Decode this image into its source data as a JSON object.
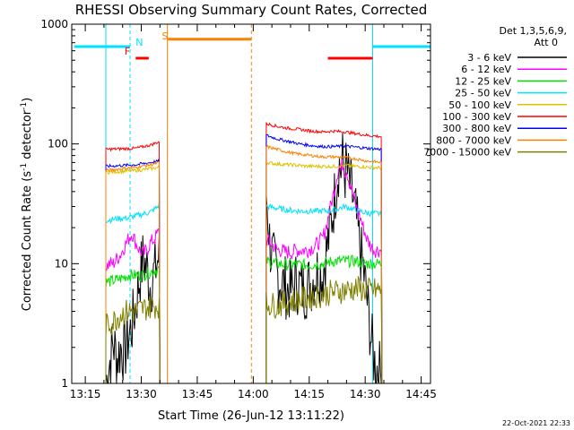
{
  "chart_data": {
    "type": "line",
    "title": "RHESSI Observing Summary Count Rates, Corrected",
    "xlabel": "Start Time (26-Jun-12 13:11:22)",
    "ylabel_main": "Corrected Count Rate (s",
    "ylabel_sup1": "-1",
    "ylabel_mid": " detector",
    "ylabel_sup2": "-1",
    "ylabel_end": ")",
    "yscale": "log",
    "ylim": [
      1,
      1000
    ],
    "xlim_minutes": [
      11.37,
      107.5
    ],
    "x_ticks": [
      {
        "m": 15,
        "label": "13:15"
      },
      {
        "m": 30,
        "label": "13:30"
      },
      {
        "m": 45,
        "label": "13:45"
      },
      {
        "m": 60,
        "label": "14:00"
      },
      {
        "m": 75,
        "label": "14:15"
      },
      {
        "m": 90,
        "label": "14:30"
      },
      {
        "m": 105,
        "label": "14:45"
      }
    ],
    "y_ticks": [
      {
        "v": 1,
        "label": "1"
      },
      {
        "v": 10,
        "label": "10"
      },
      {
        "v": 100,
        "label": "100"
      },
      {
        "v": 1000,
        "label": "1000"
      }
    ],
    "legend_header": [
      "Det 1,3,5,6,9,",
      "Att 0"
    ],
    "legend_position": "right",
    "series": [
      {
        "name": "3 - 6 keV",
        "color": "#000000",
        "seg1": [
          [
            20.5,
            1.0
          ],
          [
            21.5,
            1.5
          ],
          [
            22.5,
            2.2
          ],
          [
            23.5,
            1.6
          ],
          [
            24.5,
            2.0
          ],
          [
            25.5,
            1.8
          ],
          [
            26.5,
            2.4
          ],
          [
            27.5,
            3.0
          ],
          [
            28.5,
            4.5
          ],
          [
            29.5,
            7.5
          ],
          [
            30.5,
            11
          ],
          [
            31.5,
            9
          ],
          [
            32.5,
            6.5
          ],
          [
            33.5,
            8.5
          ],
          [
            34.5,
            11
          ],
          [
            35.0,
            12
          ]
        ],
        "seg2": [
          [
            63.5,
            40
          ],
          [
            64.5,
            14
          ],
          [
            65.5,
            10
          ],
          [
            66.5,
            8
          ],
          [
            67.5,
            7
          ],
          [
            68.5,
            6.5
          ],
          [
            69.5,
            6
          ],
          [
            70.5,
            6
          ],
          [
            71.5,
            7
          ],
          [
            72.5,
            6.5
          ],
          [
            73.5,
            6
          ],
          [
            74.5,
            6.5
          ],
          [
            75.5,
            7
          ],
          [
            76.5,
            8
          ],
          [
            77.5,
            9
          ],
          [
            78.5,
            8
          ],
          [
            79.5,
            12
          ],
          [
            80.5,
            18
          ],
          [
            81.5,
            30
          ],
          [
            82.5,
            55
          ],
          [
            83.0,
            70
          ],
          [
            83.5,
            60
          ],
          [
            84.0,
            75
          ],
          [
            84.5,
            55
          ],
          [
            85.0,
            65
          ],
          [
            85.5,
            50
          ],
          [
            86.5,
            38
          ],
          [
            87.5,
            25
          ],
          [
            88.5,
            14
          ],
          [
            89.5,
            9
          ],
          [
            90.5,
            5
          ],
          [
            91.5,
            2.5
          ],
          [
            92.5,
            1.5
          ],
          [
            93.5,
            1.3
          ],
          [
            94.5,
            1.2
          ]
        ]
      },
      {
        "name": "6 - 12 keV",
        "color": "#ff00ff",
        "seg1": [
          [
            20.5,
            9.5
          ],
          [
            21.5,
            10
          ],
          [
            22.5,
            10
          ],
          [
            23.5,
            11
          ],
          [
            24.5,
            12
          ],
          [
            25.5,
            14
          ],
          [
            26.5,
            16
          ],
          [
            27.5,
            18
          ],
          [
            28.5,
            15
          ],
          [
            29.5,
            13
          ],
          [
            30.5,
            12
          ],
          [
            31.5,
            13
          ],
          [
            32.5,
            15
          ],
          [
            33.5,
            16
          ],
          [
            34.5,
            18
          ],
          [
            35.0,
            20
          ]
        ],
        "seg2": [
          [
            63.5,
            16
          ],
          [
            64.5,
            15
          ],
          [
            65.5,
            14
          ],
          [
            66.5,
            13
          ],
          [
            67.5,
            13
          ],
          [
            68.5,
            12.5
          ],
          [
            69.5,
            12.5
          ],
          [
            70.5,
            12.5
          ],
          [
            71.5,
            13
          ],
          [
            72.5,
            13
          ],
          [
            73.5,
            13
          ],
          [
            74.5,
            13
          ],
          [
            75.5,
            13.5
          ],
          [
            76.5,
            14
          ],
          [
            77.5,
            15
          ],
          [
            78.5,
            16
          ],
          [
            79.5,
            20
          ],
          [
            80.5,
            28
          ],
          [
            81.5,
            38
          ],
          [
            82.5,
            55
          ],
          [
            83.0,
            68
          ],
          [
            83.5,
            60
          ],
          [
            84.0,
            70
          ],
          [
            84.5,
            58
          ],
          [
            85.0,
            62
          ],
          [
            85.5,
            52
          ],
          [
            86.5,
            40
          ],
          [
            87.5,
            30
          ],
          [
            88.5,
            25
          ],
          [
            89.5,
            20
          ],
          [
            90.5,
            16
          ],
          [
            91.5,
            14
          ],
          [
            92.5,
            13
          ],
          [
            93.5,
            13
          ],
          [
            94.5,
            13
          ]
        ]
      },
      {
        "name": "12 - 25 keV",
        "color": "#00e000",
        "seg1": [
          [
            20.5,
            7
          ],
          [
            22.5,
            7.2
          ],
          [
            24.5,
            7.5
          ],
          [
            26.5,
            8
          ],
          [
            28.5,
            8
          ],
          [
            30.5,
            8
          ],
          [
            32.5,
            8.5
          ],
          [
            34.5,
            9
          ],
          [
            35.0,
            9
          ]
        ],
        "seg2": [
          [
            63.5,
            10.5
          ],
          [
            66.5,
            10
          ],
          [
            69.5,
            9.8
          ],
          [
            72.5,
            9.8
          ],
          [
            75.5,
            9.8
          ],
          [
            78.5,
            10
          ],
          [
            81.5,
            10.5
          ],
          [
            84.5,
            10.5
          ],
          [
            87.5,
            10.5
          ],
          [
            90.5,
            10
          ],
          [
            94.5,
            10
          ]
        ]
      },
      {
        "name": "25 - 50 keV",
        "color": "#00e0ff",
        "seg1": [
          [
            20.5,
            23
          ],
          [
            22.5,
            23.5
          ],
          [
            24.5,
            24
          ],
          [
            26.5,
            24
          ],
          [
            28.5,
            25
          ],
          [
            30.5,
            26
          ],
          [
            32.5,
            27
          ],
          [
            34.5,
            30
          ],
          [
            35.0,
            33
          ]
        ],
        "seg2": [
          [
            63.5,
            30
          ],
          [
            66.5,
            29
          ],
          [
            69.5,
            28
          ],
          [
            72.5,
            27.5
          ],
          [
            75.5,
            27.5
          ],
          [
            78.5,
            27.5
          ],
          [
            81.5,
            28
          ],
          [
            84.5,
            30
          ],
          [
            87.5,
            28
          ],
          [
            90.5,
            26.5
          ],
          [
            94.5,
            26
          ]
        ]
      },
      {
        "name": "50 - 100 keV",
        "color": "#e0c000",
        "seg1": [
          [
            20.5,
            58
          ],
          [
            24.5,
            59
          ],
          [
            28.5,
            60
          ],
          [
            32.5,
            62
          ],
          [
            35.0,
            64
          ]
        ],
        "seg2": [
          [
            63.5,
            70
          ],
          [
            66.5,
            68
          ],
          [
            69.5,
            67
          ],
          [
            72.5,
            66
          ],
          [
            75.5,
            65
          ],
          [
            78.5,
            65
          ],
          [
            81.5,
            65
          ],
          [
            84.5,
            66
          ],
          [
            87.5,
            65
          ],
          [
            90.5,
            64
          ],
          [
            94.5,
            63
          ]
        ]
      },
      {
        "name": "100 - 300 keV",
        "color": "#ff0000",
        "seg1": [
          [
            20.5,
            90
          ],
          [
            24.5,
            91
          ],
          [
            28.5,
            92
          ],
          [
            32.5,
            98
          ],
          [
            35.0,
            105
          ]
        ],
        "seg2": [
          [
            63.5,
            148
          ],
          [
            66.5,
            140
          ],
          [
            69.5,
            135
          ],
          [
            72.5,
            132
          ],
          [
            75.5,
            128
          ],
          [
            78.5,
            126
          ],
          [
            81.5,
            128
          ],
          [
            84.5,
            126
          ],
          [
            87.5,
            122
          ],
          [
            90.5,
            118
          ],
          [
            94.5,
            115
          ]
        ]
      },
      {
        "name": "300 - 800 keV",
        "color": "#0000ff",
        "seg1": [
          [
            20.5,
            65
          ],
          [
            24.5,
            66
          ],
          [
            28.5,
            67
          ],
          [
            32.5,
            70
          ],
          [
            35.0,
            72
          ]
        ],
        "seg2": [
          [
            63.5,
            118
          ],
          [
            66.5,
            110
          ],
          [
            69.5,
            105
          ],
          [
            72.5,
            100
          ],
          [
            75.5,
            97
          ],
          [
            78.5,
            95
          ],
          [
            81.5,
            95
          ],
          [
            84.5,
            96
          ],
          [
            87.5,
            94
          ],
          [
            90.5,
            92
          ],
          [
            94.5,
            90
          ]
        ]
      },
      {
        "name": "800 - 7000 keV",
        "color": "#ff8000",
        "seg1": [
          [
            20.5,
            60
          ],
          [
            24.5,
            62
          ],
          [
            28.5,
            64
          ],
          [
            32.5,
            67
          ],
          [
            35.0,
            70
          ]
        ],
        "seg2": [
          [
            63.5,
            95
          ],
          [
            66.5,
            90
          ],
          [
            69.5,
            85
          ],
          [
            72.5,
            82
          ],
          [
            75.5,
            80
          ],
          [
            78.5,
            78
          ],
          [
            81.5,
            78
          ],
          [
            84.5,
            77
          ],
          [
            87.5,
            75
          ],
          [
            90.5,
            72
          ],
          [
            94.5,
            70
          ]
        ]
      },
      {
        "name": "7000 - 15000 keV",
        "color": "#808000",
        "seg1": [
          [
            20.5,
            3.0
          ],
          [
            22.5,
            3.3
          ],
          [
            24.5,
            3.8
          ],
          [
            26.5,
            4.0
          ],
          [
            28.5,
            4.0
          ],
          [
            30.5,
            4.2
          ],
          [
            32.5,
            4.4
          ],
          [
            35.0,
            4.5
          ]
        ],
        "seg2": [
          [
            63.5,
            4.6
          ],
          [
            66.5,
            4.5
          ],
          [
            69.5,
            4.8
          ],
          [
            72.5,
            5.0
          ],
          [
            75.5,
            5.3
          ],
          [
            78.5,
            5.5
          ],
          [
            81.5,
            5.8
          ],
          [
            84.5,
            6.0
          ],
          [
            87.5,
            6.2
          ],
          [
            90.5,
            6.0
          ],
          [
            94.5,
            6.0
          ]
        ]
      }
    ],
    "annotations": {
      "night_color": "#00e0ff",
      "night_bars": [
        [
          12,
          27
        ],
        [
          92,
          107.5
        ]
      ],
      "night_level": 650,
      "night_edges_solid": [
        20.5,
        92
      ],
      "night_edges_dashed": [
        27,
        107.5
      ],
      "night_label": "N",
      "night_label_m": 28.5,
      "saa_color": "#ff8000",
      "saa_bar": [
        37,
        59.5
      ],
      "saa_level": 750,
      "saa_label": "S",
      "saa_label_m": 35.5,
      "saa_edge_solid": 37,
      "saa_edge_dashed": 59.5,
      "flare_color": "#ff0000",
      "flare_bars": [
        [
          28.5,
          32
        ],
        [
          80,
          92
        ]
      ],
      "flare_level": 520,
      "flare_label": "F",
      "flare_label_m": 25.5
    }
  },
  "footer_timestamp": "22-Oct-2021 22:33"
}
